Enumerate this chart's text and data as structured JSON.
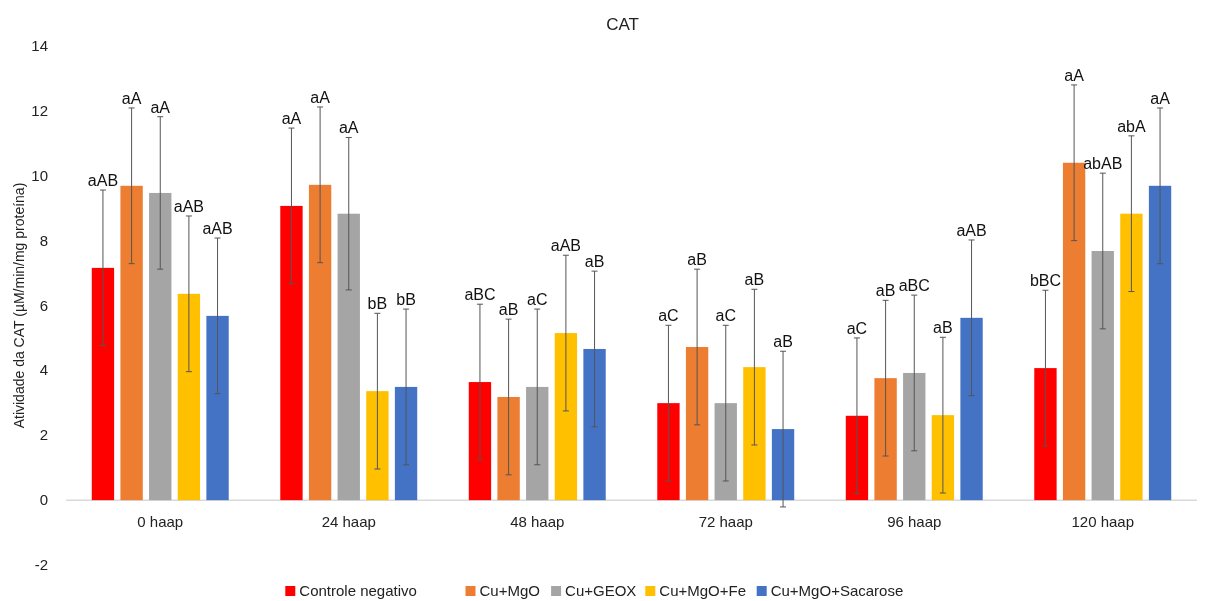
{
  "chart_data": {
    "type": "bar",
    "title": "CAT",
    "ylabel": "Atividade da CAT (µM/min/mg proteína)",
    "categories": [
      "0 haap",
      "24 haap",
      "48 haap",
      "72 haap",
      "96 haap",
      "120 haap"
    ],
    "series": [
      {
        "name": "Controle negativo",
        "color": "#ff0000",
        "values": [
          7.16,
          9.07,
          3.64,
          2.99,
          2.6,
          4.07
        ],
        "errors": [
          2.4,
          2.4,
          2.4,
          2.4,
          2.4,
          2.4
        ]
      },
      {
        "name": "Cu+MgO",
        "color": "#ed7d31",
        "values": [
          9.69,
          9.72,
          3.18,
          4.72,
          3.76,
          10.4
        ],
        "errors": [
          2.4,
          2.4,
          2.4,
          2.4,
          2.4,
          2.4
        ]
      },
      {
        "name": "Cu+GEOX",
        "color": "#a5a5a5",
        "values": [
          9.47,
          8.83,
          3.49,
          2.99,
          3.92,
          7.68
        ],
        "errors": [
          2.35,
          2.35,
          2.4,
          2.4,
          2.4,
          2.4
        ]
      },
      {
        "name": "Cu+MgO+Fe",
        "color": "#ffc000",
        "values": [
          6.36,
          3.36,
          5.15,
          4.1,
          2.62,
          8.83
        ],
        "errors": [
          2.4,
          2.4,
          2.4,
          2.4,
          2.4,
          2.4
        ]
      },
      {
        "name": "Cu+MgO+Sacarose",
        "color": "#4472c4",
        "values": [
          5.68,
          3.49,
          4.66,
          2.19,
          5.62,
          9.69
        ],
        "errors": [
          2.4,
          2.4,
          2.4,
          2.4,
          2.4,
          2.4
        ]
      }
    ],
    "annotations": [
      "aAB",
      "aA",
      "aA",
      "aAB",
      "aAB",
      "aA",
      "aA",
      "aA",
      "bB",
      "bB",
      "aBC",
      "aB",
      "aC",
      "aAB",
      "aB",
      "aC",
      "aB",
      "aC",
      "aB",
      "aB",
      "aC",
      "aB",
      "aBC",
      "aB",
      "aAB",
      "bBC",
      "aA",
      "abAB",
      "abA",
      "aA"
    ],
    "ylim": [
      -2,
      14
    ],
    "yticks": [
      -2,
      0,
      2,
      4,
      6,
      8,
      10,
      12,
      14
    ],
    "grid": false,
    "legend": "bottom"
  }
}
